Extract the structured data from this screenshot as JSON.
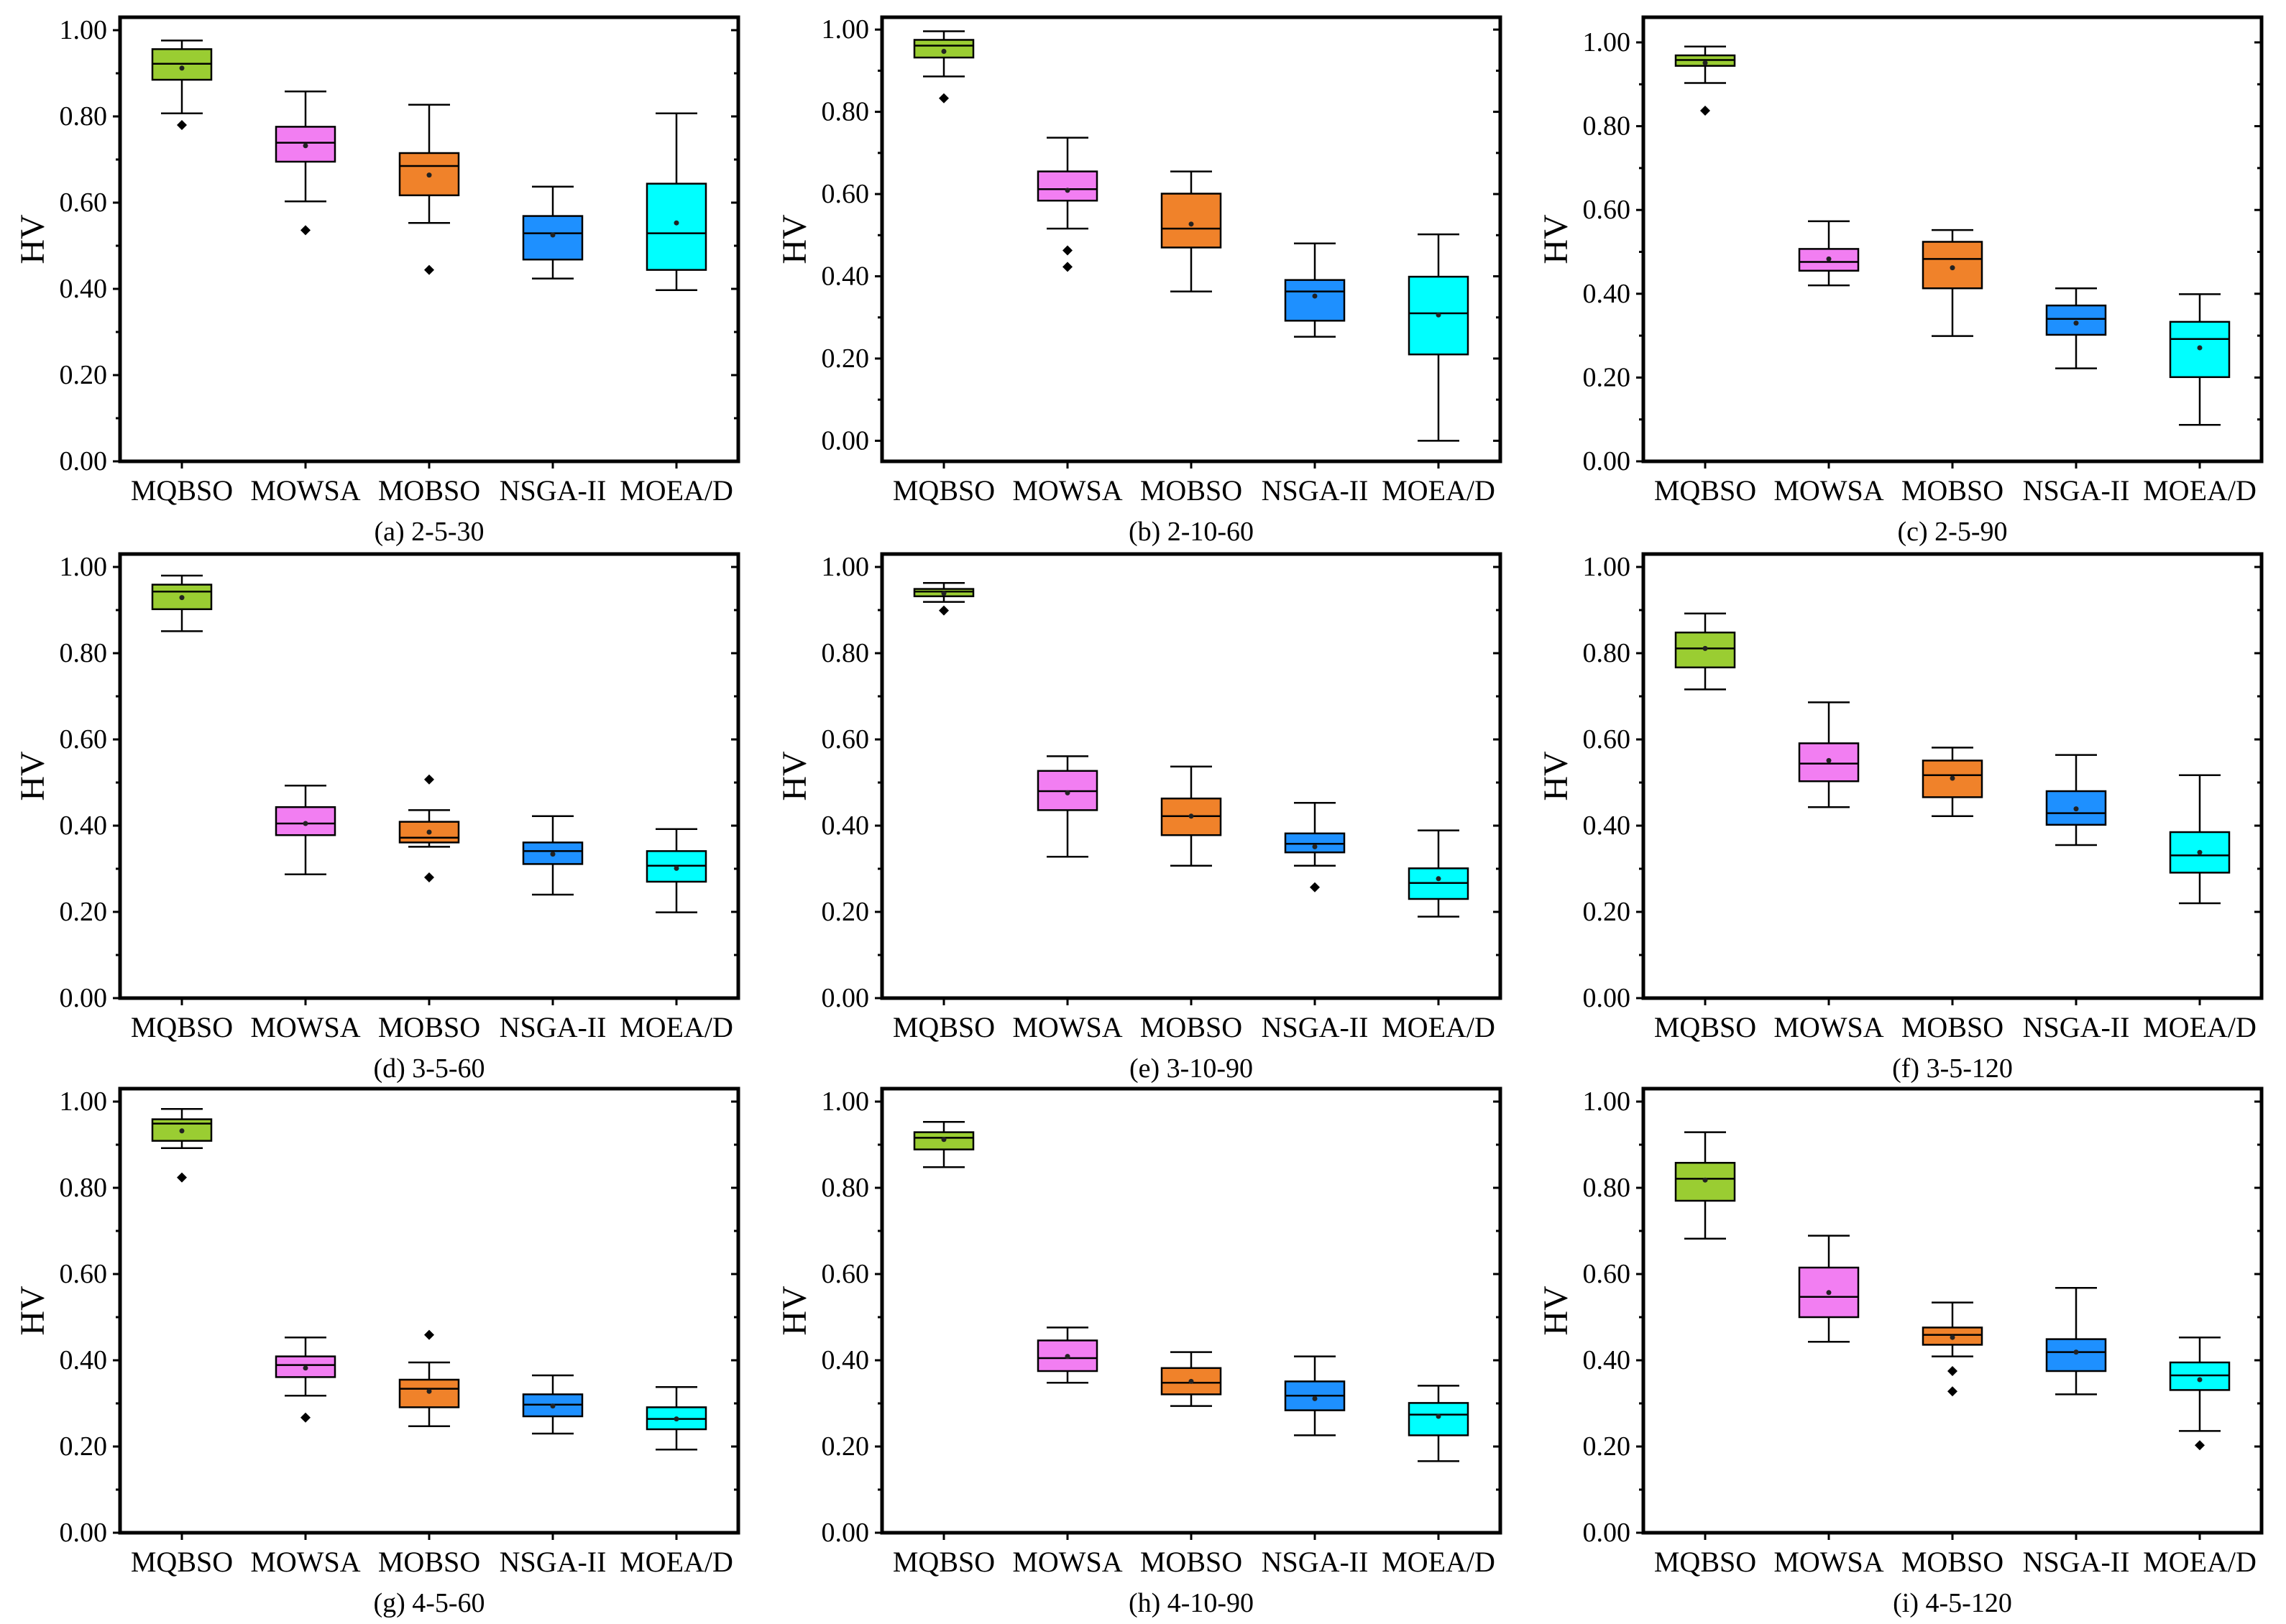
{
  "series_colors": {
    "MQBSO": "#9ACD32",
    "MOWSA": "#F27EF2",
    "MOBSO": "#F0822A",
    "NSGA-II": "#1E90FF",
    "MOEA/D": "#00FFFF"
  },
  "chart_data": [
    {
      "type": "box",
      "caption": "(a) 2-5-30",
      "ylabel": "HV",
      "ylim": [
        0,
        1.03
      ],
      "yticks": [
        "0.00",
        "0.20",
        "0.40",
        "0.60",
        "0.80",
        "1.00"
      ],
      "categories": [
        "MQBSO",
        "MOWSA",
        "MOBSO",
        "NSGA-II",
        "MOEA/D"
      ],
      "boxes": [
        {
          "whisker_low": 0.807,
          "q1": 0.885,
          "median": 0.922,
          "q3": 0.956,
          "whisker_high": 0.976,
          "mean": 0.912,
          "outliers": [
            0.78
          ]
        },
        {
          "whisker_low": 0.603,
          "q1": 0.695,
          "median": 0.739,
          "q3": 0.776,
          "whisker_high": 0.858,
          "mean": 0.732,
          "outliers": [
            0.536
          ]
        },
        {
          "whisker_low": 0.553,
          "q1": 0.617,
          "median": 0.685,
          "q3": 0.715,
          "whisker_high": 0.827,
          "mean": 0.664,
          "outliers": [
            0.444
          ]
        },
        {
          "whisker_low": 0.424,
          "q1": 0.468,
          "median": 0.529,
          "q3": 0.569,
          "whisker_high": 0.637,
          "mean": 0.525,
          "outliers": []
        },
        {
          "whisker_low": 0.397,
          "q1": 0.444,
          "median": 0.529,
          "q3": 0.644,
          "whisker_high": 0.807,
          "mean": 0.553,
          "outliers": []
        }
      ]
    },
    {
      "type": "box",
      "caption": "(b) 2-10-60",
      "ylabel": "HV",
      "ylim": [
        -0.05,
        1.03
      ],
      "yticks": [
        "0.00",
        "0.20",
        "0.40",
        "0.60",
        "0.80",
        "1.00"
      ],
      "categories": [
        "MQBSO",
        "MOWSA",
        "MOBSO",
        "NSGA-II",
        "MOEA/D"
      ],
      "boxes": [
        {
          "whisker_low": 0.886,
          "q1": 0.932,
          "median": 0.961,
          "q3": 0.975,
          "whisker_high": 0.996,
          "mean": 0.947,
          "outliers": [
            0.833
          ]
        },
        {
          "whisker_low": 0.516,
          "q1": 0.584,
          "median": 0.612,
          "q3": 0.655,
          "whisker_high": 0.737,
          "mean": 0.609,
          "outliers": [
            0.463,
            0.423
          ]
        },
        {
          "whisker_low": 0.363,
          "q1": 0.47,
          "median": 0.516,
          "q3": 0.601,
          "whisker_high": 0.655,
          "mean": 0.527,
          "outliers": []
        },
        {
          "whisker_low": 0.253,
          "q1": 0.292,
          "median": 0.363,
          "q3": 0.391,
          "whisker_high": 0.48,
          "mean": 0.352,
          "outliers": []
        },
        {
          "whisker_low": 0.0,
          "q1": 0.21,
          "median": 0.31,
          "q3": 0.399,
          "whisker_high": 0.502,
          "mean": 0.306,
          "outliers": []
        }
      ]
    },
    {
      "type": "box",
      "caption": "(c) 2-5-90",
      "ylabel": "HV",
      "ylim": [
        0,
        1.06
      ],
      "yticks": [
        "0.00",
        "0.20",
        "0.40",
        "0.60",
        "0.80",
        "1.00"
      ],
      "categories": [
        "MQBSO",
        "MOWSA",
        "MOBSO",
        "NSGA-II",
        "MOEA/D"
      ],
      "boxes": [
        {
          "whisker_low": 0.903,
          "q1": 0.944,
          "median": 0.958,
          "q3": 0.969,
          "whisker_high": 0.99,
          "mean": 0.951,
          "outliers": [
            0.837
          ]
        },
        {
          "whisker_low": 0.42,
          "q1": 0.455,
          "median": 0.476,
          "q3": 0.507,
          "whisker_high": 0.573,
          "mean": 0.483,
          "outliers": []
        },
        {
          "whisker_low": 0.299,
          "q1": 0.413,
          "median": 0.483,
          "q3": 0.524,
          "whisker_high": 0.552,
          "mean": 0.462,
          "outliers": []
        },
        {
          "whisker_low": 0.222,
          "q1": 0.302,
          "median": 0.34,
          "q3": 0.372,
          "whisker_high": 0.413,
          "mean": 0.33,
          "outliers": []
        },
        {
          "whisker_low": 0.087,
          "q1": 0.201,
          "median": 0.292,
          "q3": 0.333,
          "whisker_high": 0.399,
          "mean": 0.271,
          "outliers": []
        }
      ]
    },
    {
      "type": "box",
      "caption": "(d) 3-5-60",
      "ylabel": "HV",
      "ylim": [
        0,
        1.03
      ],
      "yticks": [
        "0.00",
        "0.20",
        "0.40",
        "0.60",
        "0.80",
        "1.00"
      ],
      "categories": [
        "MQBSO",
        "MOWSA",
        "MOBSO",
        "NSGA-II",
        "MOEA/D"
      ],
      "boxes": [
        {
          "whisker_low": 0.851,
          "q1": 0.902,
          "median": 0.943,
          "q3": 0.959,
          "whisker_high": 0.98,
          "mean": 0.929,
          "outliers": []
        },
        {
          "whisker_low": 0.287,
          "q1": 0.378,
          "median": 0.405,
          "q3": 0.443,
          "whisker_high": 0.493,
          "mean": 0.405,
          "outliers": []
        },
        {
          "whisker_low": 0.351,
          "q1": 0.361,
          "median": 0.372,
          "q3": 0.409,
          "whisker_high": 0.436,
          "mean": 0.385,
          "outliers": [
            0.507,
            0.28
          ]
        },
        {
          "whisker_low": 0.24,
          "q1": 0.311,
          "median": 0.341,
          "q3": 0.361,
          "whisker_high": 0.422,
          "mean": 0.334,
          "outliers": []
        },
        {
          "whisker_low": 0.199,
          "q1": 0.27,
          "median": 0.307,
          "q3": 0.341,
          "whisker_high": 0.392,
          "mean": 0.301,
          "outliers": []
        }
      ]
    },
    {
      "type": "box",
      "caption": "(e) 3-10-90",
      "ylabel": "HV",
      "ylim": [
        0,
        1.03
      ],
      "yticks": [
        "0.00",
        "0.20",
        "0.40",
        "0.60",
        "0.80",
        "1.00"
      ],
      "categories": [
        "MQBSO",
        "MOWSA",
        "MOBSO",
        "NSGA-II",
        "MOEA/D"
      ],
      "boxes": [
        {
          "whisker_low": 0.919,
          "q1": 0.932,
          "median": 0.943,
          "q3": 0.949,
          "whisker_high": 0.963,
          "mean": 0.939,
          "outliers": [
            0.899
          ]
        },
        {
          "whisker_low": 0.328,
          "q1": 0.436,
          "median": 0.48,
          "q3": 0.527,
          "whisker_high": 0.561,
          "mean": 0.476,
          "outliers": []
        },
        {
          "whisker_low": 0.307,
          "q1": 0.378,
          "median": 0.422,
          "q3": 0.463,
          "whisker_high": 0.537,
          "mean": 0.422,
          "outliers": []
        },
        {
          "whisker_low": 0.307,
          "q1": 0.338,
          "median": 0.358,
          "q3": 0.382,
          "whisker_high": 0.453,
          "mean": 0.351,
          "outliers": [
            0.257
          ]
        },
        {
          "whisker_low": 0.189,
          "q1": 0.23,
          "median": 0.267,
          "q3": 0.301,
          "whisker_high": 0.389,
          "mean": 0.277,
          "outliers": []
        }
      ]
    },
    {
      "type": "box",
      "caption": "(f) 3-5-120",
      "ylabel": "HV",
      "ylim": [
        0,
        1.03
      ],
      "yticks": [
        "0.00",
        "0.20",
        "0.40",
        "0.60",
        "0.80",
        "1.00"
      ],
      "categories": [
        "MQBSO",
        "MOWSA",
        "MOBSO",
        "NSGA-II",
        "MOEA/D"
      ],
      "boxes": [
        {
          "whisker_low": 0.716,
          "q1": 0.767,
          "median": 0.811,
          "q3": 0.848,
          "whisker_high": 0.892,
          "mean": 0.811,
          "outliers": []
        },
        {
          "whisker_low": 0.443,
          "q1": 0.503,
          "median": 0.544,
          "q3": 0.591,
          "whisker_high": 0.686,
          "mean": 0.551,
          "outliers": []
        },
        {
          "whisker_low": 0.422,
          "q1": 0.466,
          "median": 0.517,
          "q3": 0.551,
          "whisker_high": 0.581,
          "mean": 0.51,
          "outliers": []
        },
        {
          "whisker_low": 0.355,
          "q1": 0.402,
          "median": 0.429,
          "q3": 0.48,
          "whisker_high": 0.564,
          "mean": 0.439,
          "outliers": []
        },
        {
          "whisker_low": 0.22,
          "q1": 0.291,
          "median": 0.331,
          "q3": 0.385,
          "whisker_high": 0.517,
          "mean": 0.338,
          "outliers": []
        }
      ]
    },
    {
      "type": "box",
      "caption": "(g) 4-5-60",
      "ylabel": "HV",
      "ylim": [
        0,
        1.03
      ],
      "yticks": [
        "0.00",
        "0.20",
        "0.40",
        "0.60",
        "0.80",
        "1.00"
      ],
      "categories": [
        "MQBSO",
        "MOWSA",
        "MOBSO",
        "NSGA-II",
        "MOEA/D"
      ],
      "boxes": [
        {
          "whisker_low": 0.892,
          "q1": 0.909,
          "median": 0.949,
          "q3": 0.959,
          "whisker_high": 0.983,
          "mean": 0.932,
          "outliers": [
            0.824
          ]
        },
        {
          "whisker_low": 0.318,
          "q1": 0.361,
          "median": 0.389,
          "q3": 0.409,
          "whisker_high": 0.453,
          "mean": 0.382,
          "outliers": [
            0.267
          ]
        },
        {
          "whisker_low": 0.247,
          "q1": 0.291,
          "median": 0.334,
          "q3": 0.355,
          "whisker_high": 0.395,
          "mean": 0.328,
          "outliers": [
            0.459
          ]
        },
        {
          "whisker_low": 0.23,
          "q1": 0.27,
          "median": 0.297,
          "q3": 0.321,
          "whisker_high": 0.365,
          "mean": 0.294,
          "outliers": []
        },
        {
          "whisker_low": 0.193,
          "q1": 0.24,
          "median": 0.264,
          "q3": 0.291,
          "whisker_high": 0.338,
          "mean": 0.264,
          "outliers": []
        }
      ]
    },
    {
      "type": "box",
      "caption": "(h) 4-10-90",
      "ylabel": "HV",
      "ylim": [
        0,
        1.03
      ],
      "yticks": [
        "0.00",
        "0.20",
        "0.40",
        "0.60",
        "0.80",
        "1.00"
      ],
      "categories": [
        "MQBSO",
        "MOWSA",
        "MOBSO",
        "NSGA-II",
        "MOEA/D"
      ],
      "boxes": [
        {
          "whisker_low": 0.848,
          "q1": 0.889,
          "median": 0.916,
          "q3": 0.929,
          "whisker_high": 0.953,
          "mean": 0.912,
          "outliers": []
        },
        {
          "whisker_low": 0.348,
          "q1": 0.375,
          "median": 0.405,
          "q3": 0.446,
          "whisker_high": 0.476,
          "mean": 0.409,
          "outliers": []
        },
        {
          "whisker_low": 0.294,
          "q1": 0.321,
          "median": 0.348,
          "q3": 0.382,
          "whisker_high": 0.419,
          "mean": 0.351,
          "outliers": []
        },
        {
          "whisker_low": 0.226,
          "q1": 0.284,
          "median": 0.318,
          "q3": 0.351,
          "whisker_high": 0.409,
          "mean": 0.311,
          "outliers": []
        },
        {
          "whisker_low": 0.166,
          "q1": 0.226,
          "median": 0.274,
          "q3": 0.301,
          "whisker_high": 0.341,
          "mean": 0.27,
          "outliers": []
        }
      ]
    },
    {
      "type": "box",
      "caption": "(i) 4-5-120",
      "ylabel": "HV",
      "ylim": [
        0,
        1.03
      ],
      "yticks": [
        "0.00",
        "0.20",
        "0.40",
        "0.60",
        "0.80",
        "1.00"
      ],
      "categories": [
        "MQBSO",
        "MOWSA",
        "MOBSO",
        "NSGA-II",
        "MOEA/D"
      ],
      "boxes": [
        {
          "whisker_low": 0.682,
          "q1": 0.77,
          "median": 0.821,
          "q3": 0.858,
          "whisker_high": 0.929,
          "mean": 0.818,
          "outliers": []
        },
        {
          "whisker_low": 0.443,
          "q1": 0.5,
          "median": 0.547,
          "q3": 0.615,
          "whisker_high": 0.689,
          "mean": 0.557,
          "outliers": []
        },
        {
          "whisker_low": 0.409,
          "q1": 0.436,
          "median": 0.459,
          "q3": 0.476,
          "whisker_high": 0.534,
          "mean": 0.453,
          "outliers": [
            0.375,
            0.328
          ]
        },
        {
          "whisker_low": 0.321,
          "q1": 0.375,
          "median": 0.419,
          "q3": 0.449,
          "whisker_high": 0.568,
          "mean": 0.419,
          "outliers": []
        },
        {
          "whisker_low": 0.236,
          "q1": 0.331,
          "median": 0.365,
          "q3": 0.395,
          "whisker_high": 0.453,
          "mean": 0.355,
          "outliers": [
            0.203
          ]
        }
      ]
    }
  ]
}
